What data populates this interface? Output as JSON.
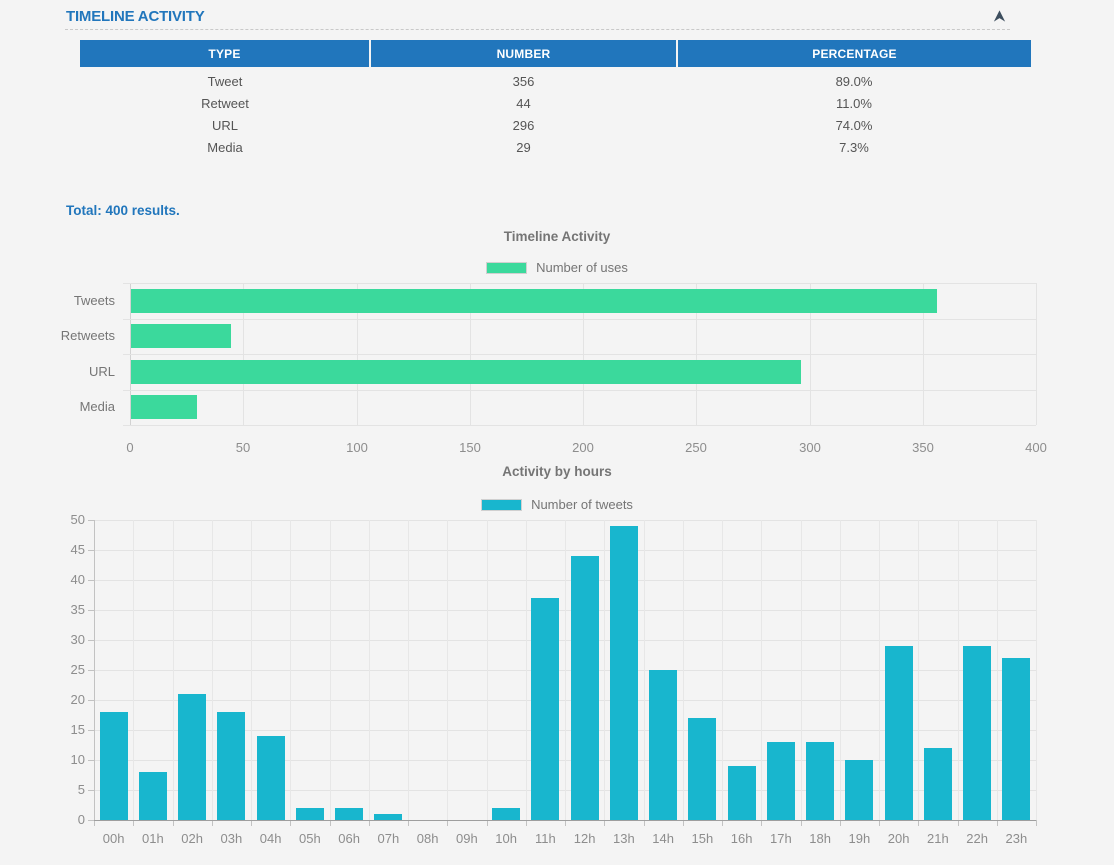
{
  "panel": {
    "title": "TIMELINE ACTIVITY",
    "collapse_icon": "collapse-up-arrow"
  },
  "table": {
    "headers": [
      "TYPE",
      "NUMBER",
      "PERCENTAGE"
    ],
    "rows": [
      {
        "type": "Tweet",
        "number": "356",
        "percentage": "89.0%"
      },
      {
        "type": "Retweet",
        "number": "44",
        "percentage": "11.0%"
      },
      {
        "type": "URL",
        "number": "296",
        "percentage": "74.0%"
      },
      {
        "type": "Media",
        "number": "29",
        "percentage": "7.3%"
      }
    ]
  },
  "total_label": "Total: 400 results.",
  "chart_data": [
    {
      "type": "bar",
      "orientation": "horizontal",
      "title": "Timeline Activity",
      "legend": "Number of uses",
      "legend_position": "top",
      "grid": true,
      "categories": [
        "Tweets",
        "Retweets",
        "URL",
        "Media"
      ],
      "values": [
        356,
        44,
        296,
        29
      ],
      "xlim": [
        0,
        400
      ],
      "xticks": [
        0,
        50,
        100,
        150,
        200,
        250,
        300,
        350,
        400
      ],
      "color": "#3bd99c"
    },
    {
      "type": "bar",
      "orientation": "vertical",
      "title": "Activity by hours",
      "legend": "Number of tweets",
      "legend_position": "top",
      "grid": true,
      "categories": [
        "00h",
        "01h",
        "02h",
        "03h",
        "04h",
        "05h",
        "06h",
        "07h",
        "08h",
        "09h",
        "10h",
        "11h",
        "12h",
        "13h",
        "14h",
        "15h",
        "16h",
        "17h",
        "18h",
        "19h",
        "20h",
        "21h",
        "22h",
        "23h"
      ],
      "values": [
        18,
        8,
        21,
        18,
        14,
        2,
        2,
        1,
        0,
        0,
        2,
        37,
        44,
        49,
        25,
        17,
        9,
        13,
        13,
        10,
        29,
        12,
        29,
        27
      ],
      "ylim": [
        0,
        50
      ],
      "yticks": [
        0,
        5,
        10,
        15,
        20,
        25,
        30,
        35,
        40,
        45,
        50
      ],
      "color": "#18b6ce"
    }
  ],
  "colors": {
    "accent_blue": "#2176bc",
    "table_header_bg": "#2176bc",
    "bar_green": "#3bd99c",
    "bar_teal": "#18b6ce",
    "grid": "#e3e3e3",
    "background": "#f4f4f4",
    "arrow": "#3d4e5e"
  }
}
